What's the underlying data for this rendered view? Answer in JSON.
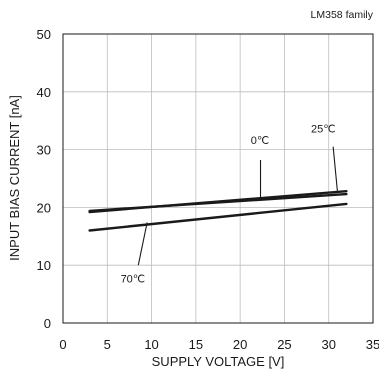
{
  "chart_data": {
    "type": "line",
    "title": "",
    "subtitle": "LM358  family",
    "xlabel": "SUPPLY VOLTAGE [V]",
    "ylabel": "INPUT BIAS CURRENT [nA]",
    "xlim": [
      0,
      35
    ],
    "ylim": [
      0,
      50
    ],
    "xticks": [
      0,
      5,
      10,
      15,
      20,
      25,
      30,
      35
    ],
    "yticks": [
      0,
      10,
      20,
      30,
      40,
      50
    ],
    "xtick_labels": [
      "0",
      "5",
      "10",
      "15",
      "20",
      "25",
      "30",
      "35"
    ],
    "ytick_labels": [
      "0",
      "10",
      "20",
      "30",
      "40",
      "50"
    ],
    "grid": true,
    "line_color": "#1a1a1a",
    "series": [
      {
        "name": "0℃",
        "x": [
          3,
          32
        ],
        "y": [
          19.4,
          22.3
        ]
      },
      {
        "name": "25℃",
        "x": [
          3,
          32
        ],
        "y": [
          19.2,
          22.8
        ]
      },
      {
        "name": "70℃",
        "x": [
          3,
          32
        ],
        "y": [
          16.0,
          20.6
        ]
      }
    ],
    "annotations": [
      {
        "series": 0,
        "text": "0℃",
        "text_at": [
          21.2,
          31.0
        ],
        "leader_from": [
          22.3,
          28.2
        ],
        "leader_to": [
          22.3,
          21.3
        ]
      },
      {
        "series": 1,
        "text": "25℃",
        "text_at": [
          28.0,
          33.0
        ],
        "leader_from": [
          30.5,
          30.5
        ],
        "leader_to": [
          31.0,
          22.5
        ]
      },
      {
        "series": 2,
        "text": "70℃",
        "text_at": [
          6.5,
          7.0
        ],
        "leader_from": [
          8.5,
          10.0
        ],
        "leader_to": [
          9.5,
          17.4
        ]
      }
    ]
  }
}
